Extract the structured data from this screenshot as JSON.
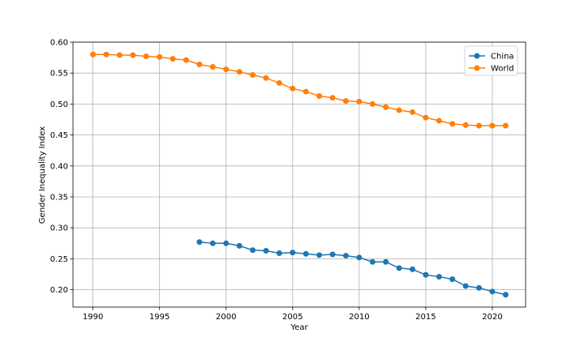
{
  "chart_data": {
    "type": "line",
    "title": "",
    "xlabel": "Year",
    "ylabel": "Gender Inequality Index",
    "xlim": [
      1988.5,
      2022.5
    ],
    "ylim": [
      0.172,
      0.6
    ],
    "xticks": [
      "1990",
      "1995",
      "2000",
      "2005",
      "2010",
      "2015",
      "2020"
    ],
    "yticks": [
      "0.20",
      "0.25",
      "0.30",
      "0.35",
      "0.40",
      "0.45",
      "0.50",
      "0.55",
      "0.60"
    ],
    "grid": true,
    "legend_position": "top-right",
    "series": [
      {
        "name": "China",
        "color": "#1f77b4",
        "x": [
          1998,
          1999,
          2000,
          2001,
          2002,
          2003,
          2004,
          2005,
          2006,
          2007,
          2008,
          2009,
          2010,
          2011,
          2012,
          2013,
          2014,
          2015,
          2016,
          2017,
          2018,
          2019,
          2020,
          2021
        ],
        "y": [
          0.277,
          0.275,
          0.275,
          0.271,
          0.264,
          0.263,
          0.259,
          0.26,
          0.258,
          0.256,
          0.257,
          0.255,
          0.252,
          0.245,
          0.245,
          0.235,
          0.233,
          0.224,
          0.221,
          0.217,
          0.206,
          0.203,
          0.197,
          0.192
        ]
      },
      {
        "name": "World",
        "color": "#ff7f0e",
        "x": [
          1990,
          1991,
          1992,
          1993,
          1994,
          1995,
          1996,
          1997,
          1998,
          1999,
          2000,
          2001,
          2002,
          2003,
          2004,
          2005,
          2006,
          2007,
          2008,
          2009,
          2010,
          2011,
          2012,
          2013,
          2014,
          2015,
          2016,
          2017,
          2018,
          2019,
          2020,
          2021
        ],
        "y": [
          0.58,
          0.58,
          0.579,
          0.579,
          0.577,
          0.576,
          0.573,
          0.571,
          0.564,
          0.56,
          0.556,
          0.552,
          0.547,
          0.542,
          0.534,
          0.525,
          0.52,
          0.513,
          0.51,
          0.505,
          0.504,
          0.5,
          0.495,
          0.49,
          0.487,
          0.478,
          0.473,
          0.468,
          0.466,
          0.465,
          0.465,
          0.465
        ]
      }
    ]
  }
}
